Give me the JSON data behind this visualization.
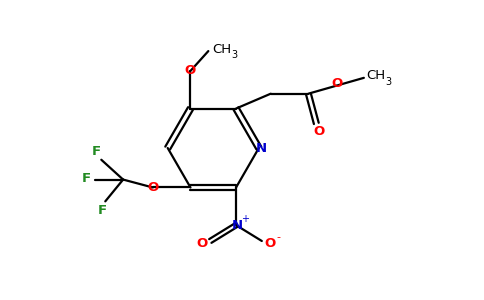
{
  "bg_color": "#ffffff",
  "bond_color": "#000000",
  "atom_colors": {
    "O": "#ff0000",
    "N": "#0000cd",
    "F": "#228b22"
  },
  "figsize": [
    4.84,
    3.0
  ],
  "dpi": 100
}
